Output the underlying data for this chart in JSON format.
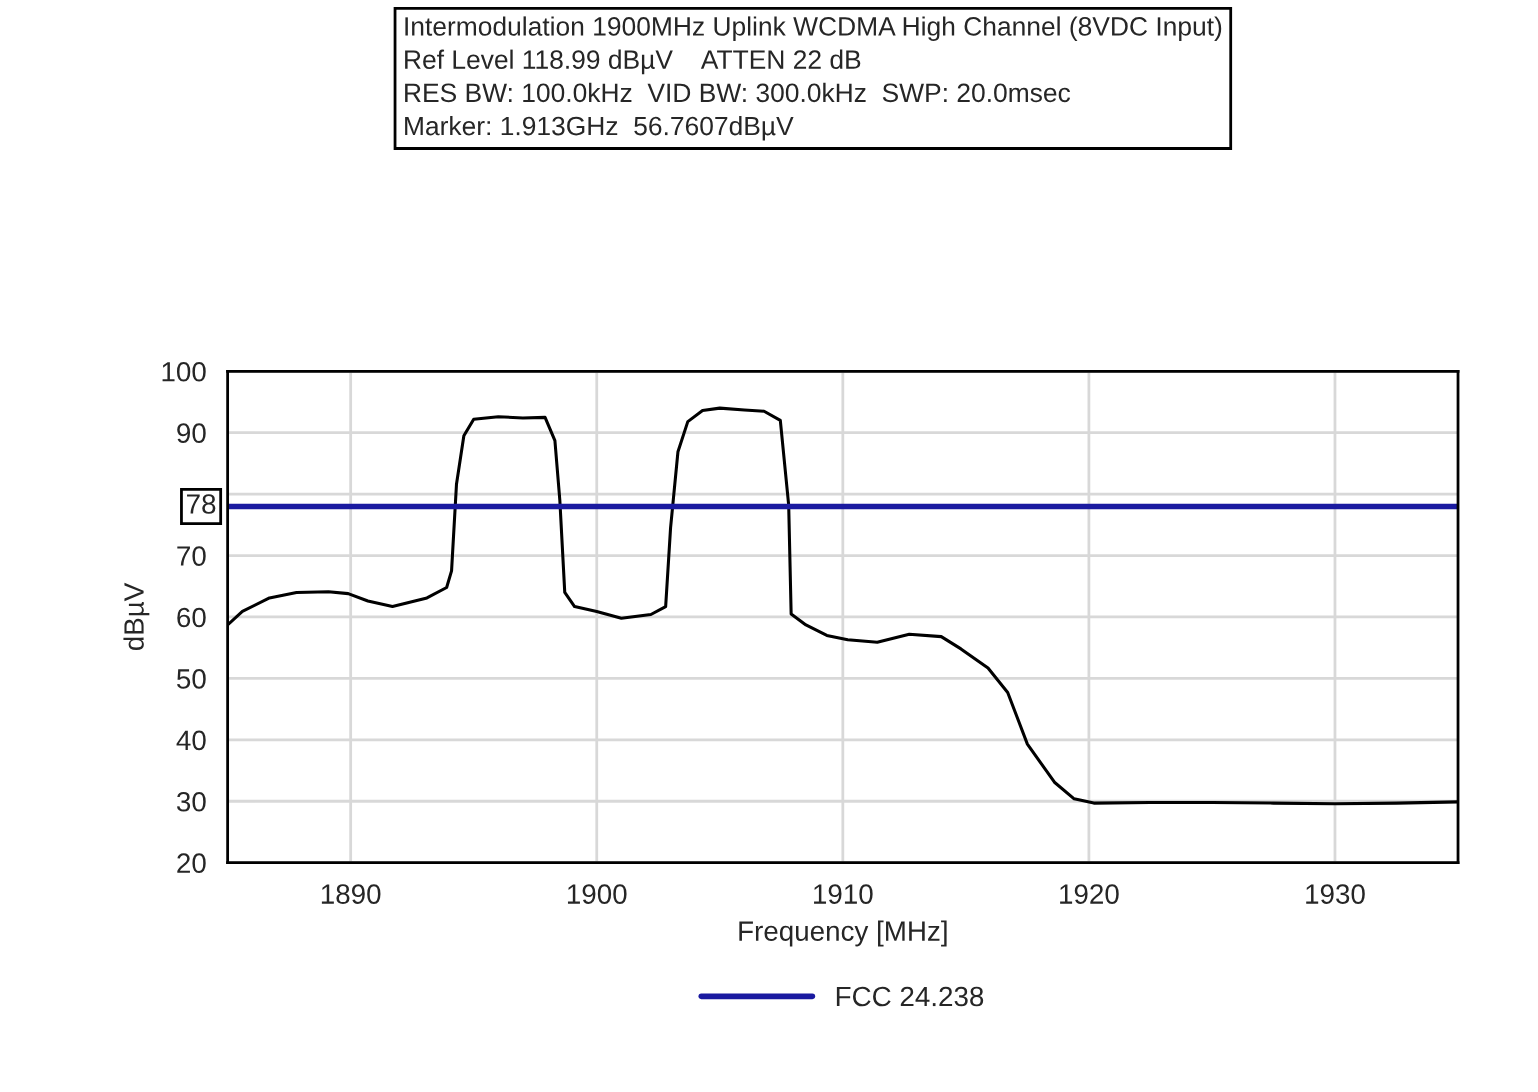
{
  "chart_data": {
    "type": "line",
    "title": "Intermodulation 1900MHz Uplink WCDMA High Channel (8VDC Input)",
    "annotations": [
      "Ref Level 118.99 dBµV    ATTEN 22 dB",
      "RES BW: 100.0kHz  VID BW: 300.0kHz  SWP: 20.0msec",
      "Marker: 1.913GHz  56.7607dBµV",
      {
        "text": "78",
        "x": 1885,
        "y": 78
      }
    ],
    "xlabel": "Frequency [MHz]",
    "ylabel": "dBµV",
    "series": [
      {
        "color": "#000000",
        "x": [
          1885.0,
          1885.6,
          1886.7,
          1887.8,
          1889.1,
          1889.9,
          1890.7,
          1891.7,
          1893.1,
          1893.9,
          1894.1,
          1894.3,
          1894.6,
          1895.0,
          1896.0,
          1897.0,
          1897.9,
          1898.3,
          1898.5,
          1898.7,
          1899.1,
          1900.0,
          1901.0,
          1902.2,
          1902.8,
          1903.0,
          1903.3,
          1903.7,
          1904.3,
          1905.0,
          1906.0,
          1906.8,
          1907.46,
          1907.8,
          1907.9,
          1908.5,
          1909.35,
          1910.2,
          1911.4,
          1912.7,
          1914.0,
          1914.8,
          1915.9,
          1916.7,
          1917.5,
          1918.6,
          1919.4,
          1920.2,
          1922.5,
          1925.0,
          1927.5,
          1930.0,
          1932.5,
          1935.0
        ],
        "values": [
          58.7,
          60.9,
          63.1,
          64.0,
          64.1,
          63.8,
          62.6,
          61.7,
          63.1,
          64.8,
          67.5,
          81.6,
          89.5,
          92.2,
          92.6,
          92.4,
          92.5,
          88.7,
          79.0,
          64.0,
          61.7,
          60.9,
          59.8,
          60.4,
          61.7,
          74.5,
          86.9,
          91.8,
          93.6,
          94.0,
          93.7,
          93.5,
          92.0,
          78.2,
          60.5,
          58.7,
          57.0,
          56.3,
          55.9,
          57.2,
          56.8,
          54.8,
          51.7,
          47.7,
          39.3,
          33.1,
          30.4,
          29.7,
          29.8,
          29.8,
          29.7,
          29.6,
          29.7,
          29.9
        ]
      }
    ],
    "ref_lines": [
      {
        "axis": "y",
        "value": 78,
        "label": "FCC 24.238",
        "color": "#1a1aa0"
      }
    ],
    "xlim": [
      1885,
      1935
    ],
    "xticks": [
      1890,
      1900,
      1910,
      1920,
      1930
    ],
    "ylim": [
      20,
      100
    ],
    "yticks": [
      20,
      30,
      40,
      50,
      60,
      70,
      {
        "value": 80,
        "label": null
      },
      90,
      100
    ],
    "grid": true,
    "legend": "bottom",
    "marker": "none",
    "line_style": "solid"
  }
}
